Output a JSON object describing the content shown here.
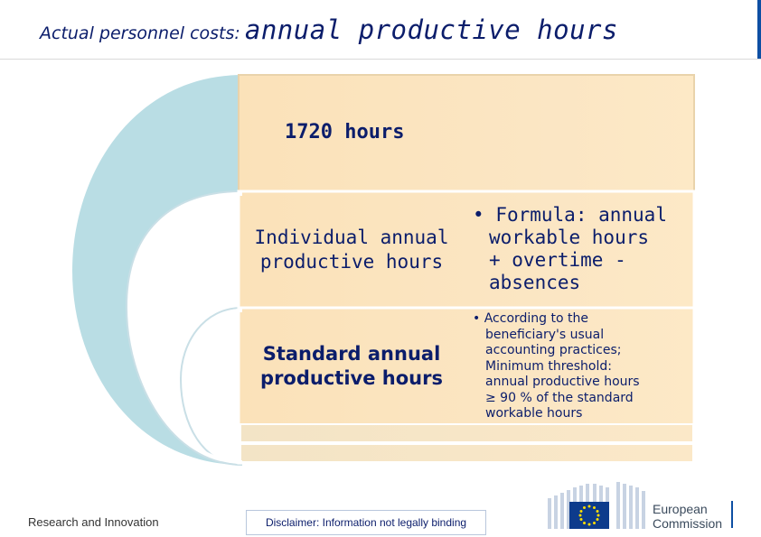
{
  "header": {
    "title_prefix": "Actual personnel costs:",
    "title_main": "annual productive hours"
  },
  "diagram": {
    "hours_box": {
      "text": "1720 hours"
    },
    "individual": {
      "label_line1": "Individual annual",
      "label_line2": "productive hours",
      "bullet": "•",
      "formula_line1": "Formula: annual",
      "formula_line2": "workable hours",
      "formula_line3": "+ overtime -",
      "formula_line4": "absences"
    },
    "standard": {
      "label_line1": "Standard annual",
      "label_line2": "productive hours",
      "bullet": "•",
      "desc_line1": "According to the",
      "desc_line2": "beneficiary's usual",
      "desc_line3": "accounting practices;",
      "desc_line4": "Minimum threshold:",
      "desc_line5": "annual productive hours",
      "desc_line6": "≥ 90 % of the standard",
      "desc_line7": "workable hours"
    },
    "colors": {
      "arc_outer": "#b9dde4",
      "box_fill": "#fbe3b8",
      "box_edge": "#f5d6a0",
      "text": "#0b1d6b"
    }
  },
  "footer": {
    "program": "Research and Innovation",
    "disclaimer": "Disclaimer: Information not legally binding",
    "logo_line1": "European",
    "logo_line2": "Commission",
    "logo_icon": "eu-flag-icon"
  }
}
